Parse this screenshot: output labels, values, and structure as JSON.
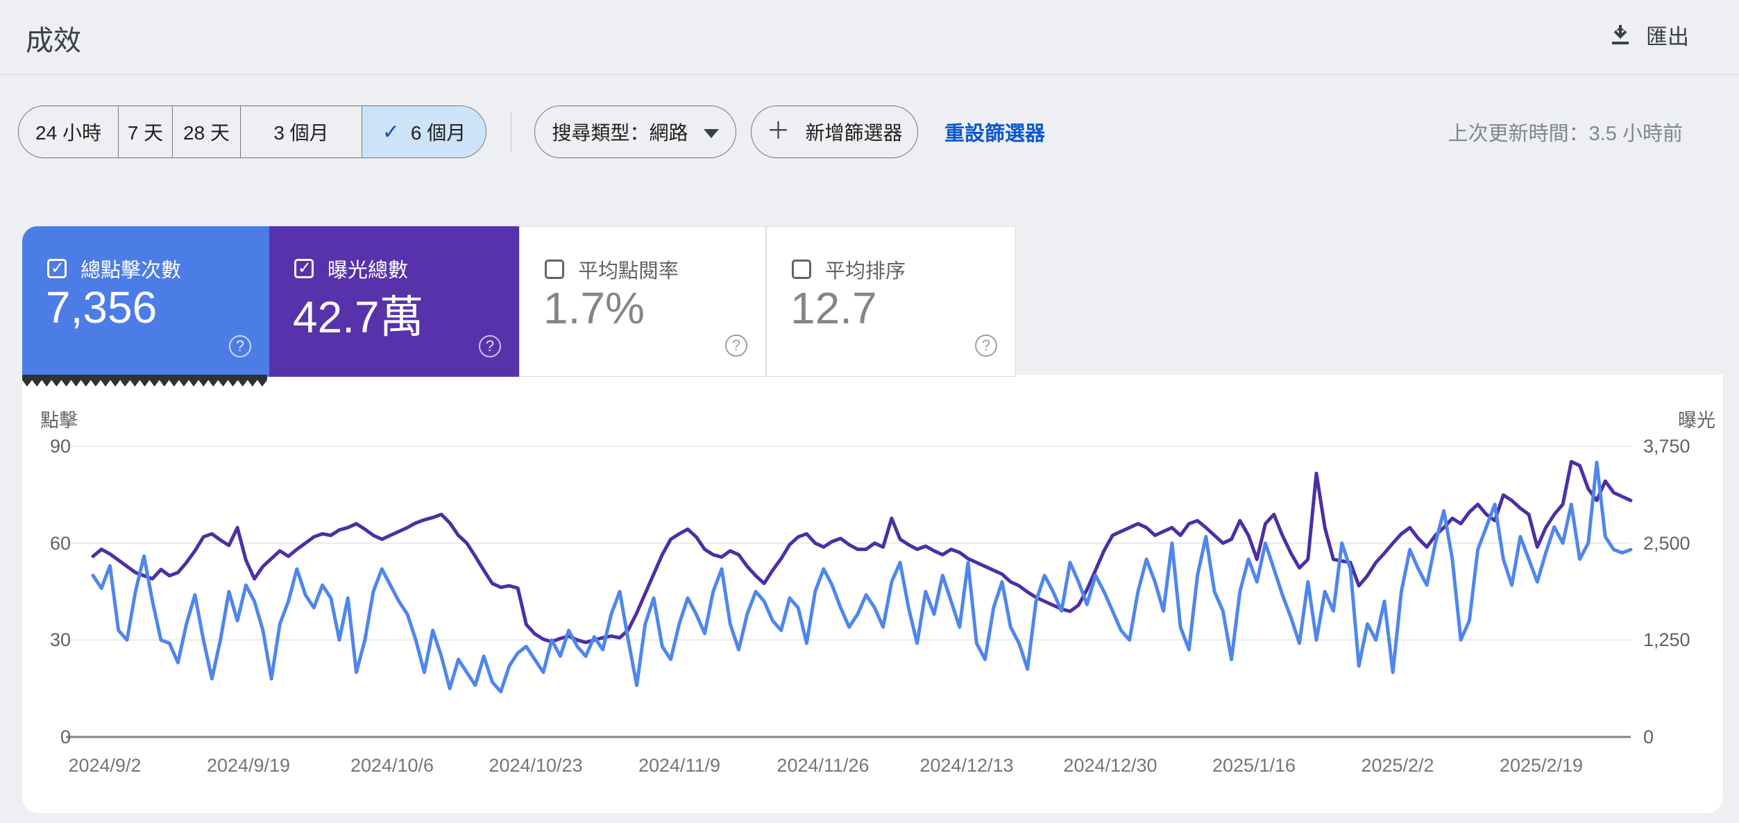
{
  "header": {
    "title": "成效",
    "export_label": "匯出"
  },
  "toolbar": {
    "date_ranges": [
      {
        "label": "24 小時",
        "selected": false
      },
      {
        "label": "7 天",
        "selected": false
      },
      {
        "label": "28 天",
        "selected": false
      },
      {
        "label": "3 個月",
        "selected": false
      },
      {
        "label": "6 個月",
        "selected": true
      }
    ],
    "search_type_label": "搜尋類型：網路",
    "add_filter_label": "新增篩選器",
    "reset_filters_label": "重設篩選器",
    "last_updated": "上次更新時間：3.5 小時前"
  },
  "colors": {
    "clicks_card_bg": "#4c7ce6",
    "impressions_card_bg": "#5732ab",
    "clicks_line": "#4e86ec",
    "impressions_line": "#4c2fa5",
    "selected_chip_bg": "#cce3f8",
    "reset_link": "#0b57d0"
  },
  "metric_cards": [
    {
      "label": "總點擊次數",
      "value": "7,356",
      "checked": true,
      "bg": "#4c7ce6",
      "fg": "#ffffff"
    },
    {
      "label": "曝光總數",
      "value": "42.7萬",
      "checked": true,
      "bg": "#5732ab",
      "fg": "#ffffff"
    },
    {
      "label": "平均點閱率",
      "value": "1.7%",
      "checked": false,
      "bg": "#ffffff",
      "fg": "#80868b"
    },
    {
      "label": "平均排序",
      "value": "12.7",
      "checked": false,
      "bg": "#ffffff",
      "fg": "#80868b"
    }
  ],
  "chart_data": {
    "type": "line",
    "title": "",
    "grid": true,
    "left_axis": {
      "label": "點擊",
      "ticks": [
        "90",
        "60",
        "30",
        "0"
      ],
      "max": 90
    },
    "right_axis": {
      "label": "曝光",
      "ticks": [
        "3,750",
        "2,500",
        "1,250",
        "0"
      ],
      "max": 3750
    },
    "x_tick_labels": [
      "2024/9/2",
      "2024/9/19",
      "2024/10/6",
      "2024/10/23",
      "2024/11/9",
      "2024/11/26",
      "2024/12/13",
      "2024/12/30",
      "2025/1/16",
      "2025/2/2",
      "2025/2/19"
    ],
    "series": [
      {
        "name": "點擊",
        "axis": "left",
        "color": "#4e86ec",
        "values": [
          50,
          46,
          53,
          33,
          30,
          45,
          56,
          42,
          30,
          29,
          23,
          35,
          44,
          30,
          18,
          30,
          45,
          36,
          47,
          42,
          33,
          18,
          35,
          42,
          52,
          44,
          40,
          47,
          43,
          30,
          43,
          20,
          30,
          45,
          52,
          47,
          42,
          38,
          30,
          20,
          33,
          25,
          15,
          24,
          20,
          16,
          25,
          17,
          14,
          22,
          26,
          28,
          24,
          20,
          30,
          25,
          33,
          28,
          25,
          31,
          27,
          38,
          45,
          30,
          16,
          35,
          43,
          28,
          24,
          35,
          43,
          38,
          32,
          45,
          52,
          35,
          27,
          38,
          45,
          42,
          36,
          33,
          43,
          40,
          29,
          45,
          52,
          47,
          40,
          34,
          38,
          44,
          40,
          34,
          48,
          54,
          40,
          29,
          45,
          38,
          50,
          42,
          34,
          54,
          29,
          24,
          40,
          48,
          34,
          29,
          21,
          42,
          50,
          45,
          39,
          54,
          48,
          41,
          50,
          45,
          39,
          33,
          30,
          45,
          55,
          48,
          39,
          60,
          34,
          27,
          50,
          62,
          45,
          39,
          24,
          45,
          55,
          48,
          60,
          52,
          44,
          37,
          29,
          48,
          30,
          45,
          39,
          60,
          52,
          22,
          35,
          30,
          42,
          20,
          45,
          58,
          52,
          47,
          60,
          70,
          55,
          30,
          36,
          58,
          65,
          72,
          55,
          47,
          62,
          55,
          48,
          57,
          65,
          60,
          72,
          55,
          60,
          85,
          62,
          58,
          57,
          58
        ]
      },
      {
        "name": "曝光",
        "axis": "right",
        "color": "#4c2fa5",
        "values": [
          2330,
          2420,
          2360,
          2280,
          2200,
          2120,
          2080,
          2040,
          2160,
          2080,
          2120,
          2250,
          2400,
          2580,
          2620,
          2540,
          2470,
          2700,
          2280,
          2040,
          2200,
          2300,
          2400,
          2330,
          2420,
          2500,
          2580,
          2620,
          2600,
          2670,
          2700,
          2750,
          2680,
          2600,
          2550,
          2600,
          2650,
          2700,
          2760,
          2800,
          2830,
          2870,
          2760,
          2600,
          2500,
          2330,
          2150,
          1980,
          1930,
          1950,
          1920,
          1450,
          1330,
          1260,
          1230,
          1270,
          1300,
          1250,
          1220,
          1250,
          1280,
          1300,
          1280,
          1380,
          1600,
          1850,
          2100,
          2350,
          2550,
          2620,
          2680,
          2580,
          2420,
          2350,
          2320,
          2400,
          2350,
          2200,
          2080,
          1980,
          2150,
          2300,
          2480,
          2580,
          2620,
          2500,
          2450,
          2520,
          2560,
          2480,
          2420,
          2420,
          2500,
          2450,
          2820,
          2550,
          2480,
          2420,
          2460,
          2400,
          2350,
          2420,
          2380,
          2300,
          2250,
          2200,
          2150,
          2100,
          2000,
          1950,
          1870,
          1800,
          1750,
          1700,
          1650,
          1620,
          1700,
          1900,
          2150,
          2400,
          2600,
          2650,
          2700,
          2750,
          2700,
          2600,
          2650,
          2700,
          2600,
          2750,
          2790,
          2700,
          2600,
          2500,
          2550,
          2790,
          2600,
          2290,
          2750,
          2870,
          2600,
          2370,
          2180,
          2290,
          3400,
          2700,
          2290,
          2270,
          2250,
          1950,
          2080,
          2250,
          2370,
          2500,
          2620,
          2700,
          2560,
          2450,
          2600,
          2700,
          2820,
          2750,
          2900,
          3000,
          2870,
          2790,
          3120,
          3050,
          2950,
          2870,
          2450,
          2700,
          2870,
          3000,
          3550,
          3500,
          3200,
          3050,
          3300,
          3150,
          3100,
          3050
        ]
      }
    ]
  }
}
